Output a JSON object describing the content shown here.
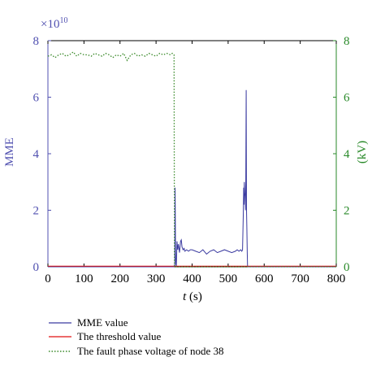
{
  "chart_data": {
    "type": "line",
    "xlabel_italic": "t",
    "xlabel_unit": " (s)",
    "ylabel_left": "MME",
    "ylabel_right": "(kV)",
    "left_exponent_base": "×10",
    "left_exponent_power": "10",
    "xlim": [
      0,
      800
    ],
    "ylim_left": [
      0,
      8
    ],
    "ylim_right": [
      0,
      8
    ],
    "x_ticks": [
      "0",
      "100",
      "200",
      "300",
      "400",
      "500",
      "600",
      "700",
      "800"
    ],
    "left_ticks": [
      "0",
      "2",
      "4",
      "6",
      "8"
    ],
    "right_ticks": [
      "0",
      "2",
      "4",
      "6",
      "8"
    ],
    "colors": {
      "mme": "#3a3aa0",
      "threshold": "#e01010",
      "voltage": "#3a8a2a",
      "left_axis": "#5050b0",
      "right_axis": "#2a8a2a"
    },
    "series": [
      {
        "name": "MME value",
        "axis": "left",
        "style": "solid",
        "x": [
          0,
          340,
          350,
          352,
          353,
          354,
          355,
          356,
          357,
          358,
          360,
          362,
          365,
          368,
          370,
          372,
          375,
          378,
          380,
          385,
          390,
          395,
          400,
          410,
          420,
          430,
          440,
          450,
          460,
          470,
          480,
          490,
          500,
          510,
          520,
          525,
          530,
          535,
          538,
          540,
          542,
          543,
          544,
          545,
          546,
          547,
          548,
          549,
          550,
          551,
          552,
          553,
          554,
          555,
          800
        ],
        "y": [
          0,
          0,
          0,
          0.1,
          2.8,
          0.5,
          0.1,
          0.0,
          0.3,
          0.9,
          0.6,
          0.8,
          0.5,
          0.9,
          0.95,
          0.7,
          0.6,
          0.65,
          0.55,
          0.6,
          0.55,
          0.6,
          0.6,
          0.55,
          0.5,
          0.6,
          0.45,
          0.55,
          0.6,
          0.5,
          0.55,
          0.6,
          0.55,
          0.5,
          0.55,
          0.6,
          0.55,
          0.6,
          0.55,
          0.6,
          1.8,
          2.8,
          2.2,
          3.0,
          2.6,
          2.5,
          2.0,
          3.0,
          6.25,
          2.0,
          1.4,
          0.5,
          0.0,
          0,
          0
        ]
      },
      {
        "name": "The threshold value",
        "axis": "left",
        "style": "solid",
        "x": [
          0,
          800
        ],
        "y": [
          0.02,
          0.02
        ]
      },
      {
        "name": "The fault phase voltage of node 38",
        "axis": "right",
        "style": "dotted",
        "x": [
          0,
          10,
          20,
          30,
          40,
          50,
          60,
          70,
          80,
          90,
          100,
          110,
          120,
          130,
          140,
          150,
          160,
          170,
          180,
          190,
          200,
          210,
          220,
          230,
          240,
          250,
          260,
          270,
          280,
          290,
          300,
          310,
          320,
          330,
          340,
          345,
          350,
          351,
          800
        ],
        "y": [
          7.45,
          7.5,
          7.4,
          7.5,
          7.55,
          7.45,
          7.5,
          7.6,
          7.45,
          7.55,
          7.5,
          7.5,
          7.45,
          7.55,
          7.5,
          7.45,
          7.55,
          7.5,
          7.4,
          7.5,
          7.45,
          7.55,
          7.3,
          7.5,
          7.55,
          7.45,
          7.5,
          7.45,
          7.55,
          7.5,
          7.45,
          7.55,
          7.5,
          7.55,
          7.5,
          7.55,
          7.5,
          0.0,
          0.0
        ]
      }
    ],
    "legend_placement": "bottom"
  }
}
